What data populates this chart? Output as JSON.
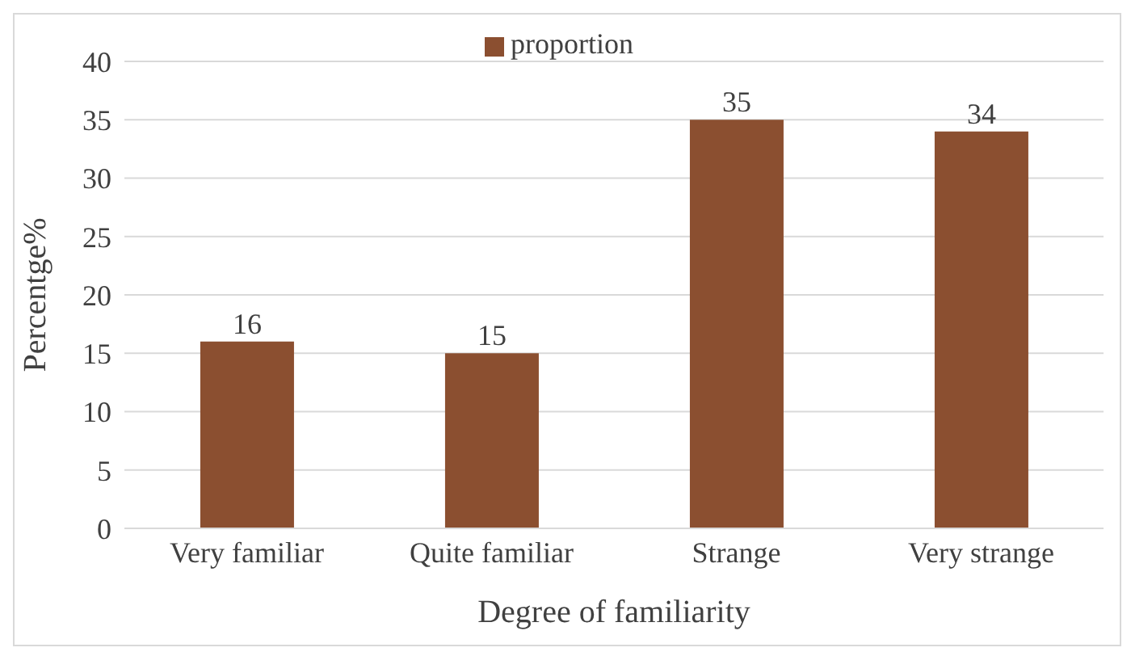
{
  "chart_data": {
    "type": "bar",
    "xlabel": "Degree of  familiarity",
    "ylabel": "Percentge%",
    "categories": [
      "Very familiar",
      "Quite familiar",
      "Strange",
      "Very strange"
    ],
    "series": [
      {
        "name": "proportion",
        "color": "#8b4f30",
        "values": [
          16,
          15,
          35,
          34
        ]
      }
    ],
    "ylim": [
      0,
      40
    ],
    "yticks": [
      0,
      5,
      10,
      15,
      20,
      25,
      30,
      35,
      40
    ],
    "grid": "y",
    "legend": "top",
    "data_labels": true
  }
}
